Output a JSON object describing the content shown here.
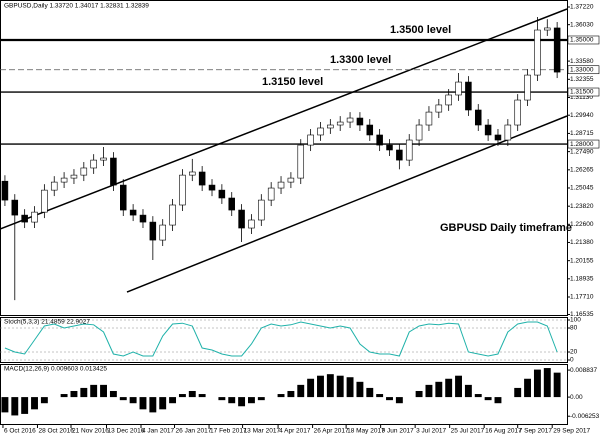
{
  "chart_data": [
    {
      "type": "candlestick",
      "title": "GBPUSD,Daily 1.33720 1.34017 1.32831 1.32839",
      "open": [
        1.255,
        1.2423,
        1.2322,
        1.2275,
        1.2342,
        1.249,
        1.2544,
        1.2571,
        1.2591,
        1.2639,
        1.2692,
        1.2706,
        1.2524,
        1.2356,
        1.2322,
        1.2275,
        1.2154,
        1.2255,
        1.239,
        1.2591,
        1.2612,
        1.2524,
        1.249,
        1.2437,
        1.2356,
        1.2235,
        1.2289,
        1.2423,
        1.2504,
        1.2544,
        1.2571,
        1.2793,
        1.2861,
        1.2908,
        1.2928,
        1.2948,
        1.2975,
        1.2928,
        1.2861,
        1.2793,
        1.276,
        1.2692,
        1.2827,
        1.2928,
        1.3015,
        1.3063,
        1.313,
        1.3217,
        1.3029,
        1.2928,
        1.2861,
        1.2827,
        1.2928,
        1.3096,
        1.3264,
        1.3567,
        1.3581
      ],
      "high": [
        1.259,
        1.2463,
        1.2362,
        1.2382,
        1.253,
        1.2584,
        1.2611,
        1.2631,
        1.2679,
        1.2732,
        1.278,
        1.2746,
        1.2564,
        1.2396,
        1.2362,
        1.2315,
        1.2295,
        1.243,
        1.2631,
        1.27,
        1.2652,
        1.2564,
        1.253,
        1.2477,
        1.2396,
        1.2329,
        1.2463,
        1.2544,
        1.2584,
        1.2611,
        1.2833,
        1.2901,
        1.2948,
        1.2968,
        1.2988,
        1.3015,
        1.3015,
        1.2968,
        1.2901,
        1.2833,
        1.28,
        1.2867,
        1.2968,
        1.3055,
        1.3103,
        1.317,
        1.3278,
        1.3257,
        1.3069,
        1.2968,
        1.2901,
        1.2968,
        1.3136,
        1.3304,
        1.3655,
        1.364,
        1.3621
      ],
      "low": [
        1.2383,
        1.175,
        1.2235,
        1.2235,
        1.2302,
        1.245,
        1.2504,
        1.2531,
        1.2551,
        1.2599,
        1.2652,
        1.2484,
        1.2316,
        1.2282,
        1.2235,
        1.202,
        1.2114,
        1.2215,
        1.235,
        1.2551,
        1.2484,
        1.245,
        1.2397,
        1.2316,
        1.2141,
        1.2195,
        1.2249,
        1.2383,
        1.2464,
        1.2504,
        1.2531,
        1.2753,
        1.2821,
        1.2868,
        1.2888,
        1.2908,
        1.2888,
        1.2821,
        1.2753,
        1.272,
        1.263,
        1.2652,
        1.2787,
        1.2888,
        1.2975,
        1.3023,
        1.309,
        1.2989,
        1.2888,
        1.2821,
        1.2787,
        1.2787,
        1.2888,
        1.3056,
        1.3224,
        1.3527,
        1.3244
      ],
      "close": [
        1.2423,
        1.2322,
        1.2275,
        1.2342,
        1.249,
        1.2544,
        1.2571,
        1.2591,
        1.2639,
        1.2692,
        1.2706,
        1.2524,
        1.2356,
        1.2322,
        1.2275,
        1.2154,
        1.2255,
        1.239,
        1.2591,
        1.2612,
        1.2524,
        1.249,
        1.2437,
        1.2356,
        1.2235,
        1.2289,
        1.2423,
        1.2504,
        1.2544,
        1.2571,
        1.2793,
        1.2861,
        1.2908,
        1.2928,
        1.2948,
        1.2975,
        1.2928,
        1.2861,
        1.2793,
        1.276,
        1.2692,
        1.2827,
        1.2928,
        1.3015,
        1.3063,
        1.313,
        1.3217,
        1.3029,
        1.2928,
        1.2861,
        1.2827,
        1.2928,
        1.3096,
        1.3264,
        1.3567,
        1.3581,
        1.3284
      ],
      "up_color": "#ffffff",
      "down_color": "#000000",
      "xlim": [
        -0.5,
        57
      ],
      "ylim": [
        1.165,
        1.3769
      ],
      "yticks": [
        {
          "value": 1.3722,
          "label": "1.37220"
        },
        {
          "value": 1.3603,
          "label": "1.36030"
        },
        {
          "value": 1.3358,
          "label": "1.33580"
        },
        {
          "value": 1.32355,
          "label": "1.32355"
        },
        {
          "value": 1.3113,
          "label": "1.31130"
        },
        {
          "value": 1.2994,
          "label": "1.29940"
        },
        {
          "value": 1.28715,
          "label": "1.28715"
        },
        {
          "value": 1.2749,
          "label": "1.27490"
        },
        {
          "value": 1.26265,
          "label": "1.26265"
        },
        {
          "value": 1.25045,
          "label": "1.25045"
        },
        {
          "value": 1.2382,
          "label": "1.23820"
        },
        {
          "value": 1.226,
          "label": "1.22600"
        },
        {
          "value": 1.2138,
          "label": "1.21380"
        },
        {
          "value": 1.20155,
          "label": "1.20155"
        },
        {
          "value": 1.18935,
          "label": "1.18935"
        },
        {
          "value": 1.1771,
          "label": "1.17710"
        },
        {
          "value": 1.16535,
          "label": "1.16535"
        }
      ],
      "levels": [
        {
          "value": 1.35,
          "label": "1.35000",
          "style": "bold"
        },
        {
          "value": 1.33,
          "label": "1.33000",
          "style": "dashed"
        },
        {
          "value": 1.315,
          "label": "1.31500",
          "style": "solid"
        },
        {
          "value": 1.28,
          "label": "1.28000",
          "style": "solid"
        }
      ],
      "annotations": [
        "1.3500 level",
        "1.3300 level",
        "1.3150 level",
        "GBPUSD Daily timeframe"
      ]
    },
    {
      "type": "line",
      "title": "Stoch(5,3,3) 21.4859 22.9027",
      "color": "#20b2aa",
      "values": [
        30,
        20,
        15,
        50,
        85,
        90,
        80,
        85,
        90,
        88,
        70,
        15,
        10,
        20,
        10,
        10,
        60,
        90,
        92,
        85,
        30,
        25,
        15,
        10,
        10,
        40,
        80,
        90,
        85,
        88,
        95,
        90,
        85,
        80,
        85,
        80,
        40,
        20,
        15,
        15,
        10,
        70,
        85,
        90,
        88,
        92,
        90,
        20,
        15,
        10,
        15,
        70,
        90,
        95,
        95,
        85,
        20
      ],
      "xlim": [
        -0.5,
        57
      ],
      "ylim": [
        -5,
        105
      ],
      "yticks": [
        100,
        80,
        20,
        0
      ]
    },
    {
      "type": "bar",
      "title": "MACD(12,26,9) 0.009603 0.013425",
      "color": "#000000",
      "values": [
        -0.005,
        -0.006,
        -0.0055,
        -0.004,
        -0.002,
        0.0,
        0.001,
        0.002,
        0.003,
        0.004,
        0.004,
        0.002,
        -0.001,
        -0.002,
        -0.004,
        -0.005,
        -0.004,
        -0.002,
        0.001,
        0.002,
        0.001,
        0.0,
        -0.001,
        -0.002,
        -0.003,
        -0.002,
        -0.001,
        0.0,
        0.001,
        0.002,
        0.004,
        0.006,
        0.007,
        0.0075,
        0.007,
        0.0065,
        0.005,
        0.003,
        0.001,
        -0.001,
        -0.002,
        0.0,
        0.002,
        0.004,
        0.005,
        0.006,
        0.007,
        0.004,
        0.001,
        -0.001,
        -0.002,
        0.0,
        0.003,
        0.006,
        0.009,
        0.0095,
        0.008
      ],
      "xlim": [
        -0.5,
        57
      ],
      "ylim": [
        -0.0088,
        0.0105
      ],
      "yticks": [
        0.008837,
        {
          "value": 0,
          "label": "0.00"
        },
        -0.006253
      ],
      "xticks": [
        {
          "value": -0.2,
          "label": "6 Oct 2016"
        },
        {
          "value": 3.3,
          "label": "28 Oct 2016"
        },
        {
          "value": 6.7,
          "label": "21 Nov 2016"
        },
        {
          "value": 10.3,
          "label": "13 Dec 2016"
        },
        {
          "value": 13.8,
          "label": "4 Jan 2017"
        },
        {
          "value": 17.2,
          "label": "26 Jan 2017"
        },
        {
          "value": 20.7,
          "label": "17 Feb 2017"
        },
        {
          "value": 24.1,
          "label": "13 Mar 2017"
        },
        {
          "value": 27.7,
          "label": "4 Apr 2017"
        },
        {
          "value": 31.2,
          "label": "26 Apr 2017"
        },
        {
          "value": 34.6,
          "label": "18 May 2017"
        },
        {
          "value": 38.1,
          "label": "9 Jun 2017"
        },
        {
          "value": 41.6,
          "label": "3 Jul 2017"
        },
        {
          "value": 45.1,
          "label": "25 Jul 2017"
        },
        {
          "value": 48.6,
          "label": "16 Aug 2017"
        },
        {
          "value": 52.0,
          "label": "7 Sep 2017"
        },
        {
          "value": 55.5,
          "label": "29 Sep 2017"
        }
      ]
    }
  ]
}
